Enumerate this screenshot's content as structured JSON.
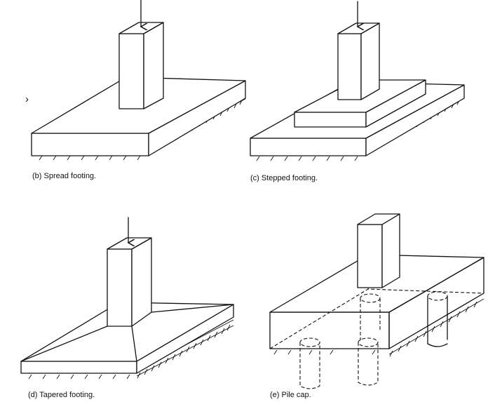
{
  "figure": {
    "panels": [
      {
        "id": "b",
        "caption": "(b)  Spread footing."
      },
      {
        "id": "c",
        "caption": "(c)  Stepped footing."
      },
      {
        "id": "d",
        "caption": "(d)  Tapered footing."
      },
      {
        "id": "e",
        "caption": "(e)  Pile cap."
      }
    ],
    "stray_mark": "›",
    "colors": {
      "ink": "#111111",
      "paper": "#ffffff"
    },
    "icons": [
      "load-arrow-icon",
      "ground-hatch-icon"
    ]
  }
}
